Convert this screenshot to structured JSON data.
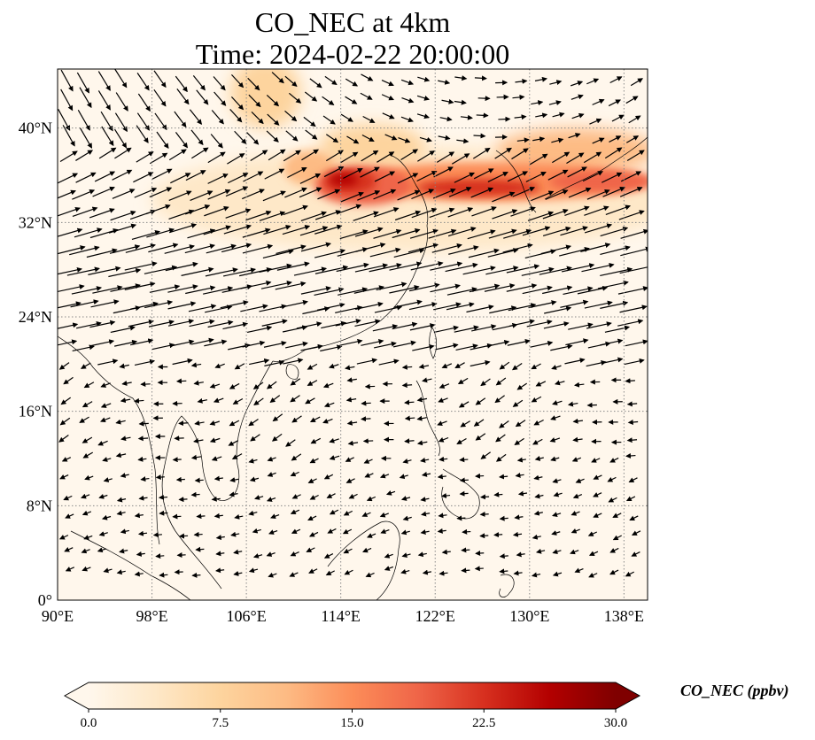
{
  "figure": {
    "title_line1": "CO_NEC at 4km",
    "title_line2": "Time: 2024-02-22 20:00:00"
  },
  "map": {
    "projection": "PlateCarree",
    "lon_range": [
      90,
      140
    ],
    "lat_range": [
      0,
      45
    ],
    "gridlines": "dotted grey",
    "lat_ticks": [
      {
        "value": 0,
        "label": "0°"
      },
      {
        "value": 8,
        "label": "8°N"
      },
      {
        "value": 16,
        "label": "16°N"
      },
      {
        "value": 24,
        "label": "24°N"
      },
      {
        "value": 32,
        "label": "32°N"
      },
      {
        "value": 40,
        "label": "40°N"
      }
    ],
    "lon_ticks": [
      {
        "value": 90,
        "label": "90°E"
      },
      {
        "value": 98,
        "label": "98°E"
      },
      {
        "value": 106,
        "label": "106°E"
      },
      {
        "value": 114,
        "label": "114°E"
      },
      {
        "value": 122,
        "label": "122°E"
      },
      {
        "value": 130,
        "label": "130°E"
      },
      {
        "value": 138,
        "label": "138°E"
      }
    ],
    "field": "CO_NEC",
    "level": "4km",
    "vectors": "wind arrows (black quiver)",
    "high_concentration_band": [
      {
        "lon": 107,
        "lat": 44,
        "value": 12
      },
      {
        "lon": 110,
        "lat": 37,
        "value": 10
      },
      {
        "lon": 114,
        "lat": 35,
        "value": 24
      },
      {
        "lon": 118,
        "lat": 34.5,
        "value": 20
      },
      {
        "lon": 124,
        "lat": 34.5,
        "value": 18
      },
      {
        "lon": 128,
        "lat": 34,
        "value": 24
      },
      {
        "lon": 134,
        "lat": 35,
        "value": 18
      },
      {
        "lon": 138,
        "lat": 36.5,
        "value": 14
      }
    ]
  },
  "colorbar": {
    "label": "CO_NEC (ppbv)",
    "cmap": "OrRd",
    "colors": [
      "#fff7ec",
      "#fee8c8",
      "#fdd49e",
      "#fdbb84",
      "#fc8d59",
      "#ef6548",
      "#d7301f",
      "#b30000",
      "#7f0000"
    ],
    "range": [
      0,
      30
    ],
    "extend": "both",
    "ticks": [
      {
        "value": 0,
        "label": "0.0"
      },
      {
        "value": 7.5,
        "label": "7.5"
      },
      {
        "value": 15,
        "label": "15.0"
      },
      {
        "value": 22.5,
        "label": "22.5"
      },
      {
        "value": 30,
        "label": "30.0"
      }
    ]
  }
}
